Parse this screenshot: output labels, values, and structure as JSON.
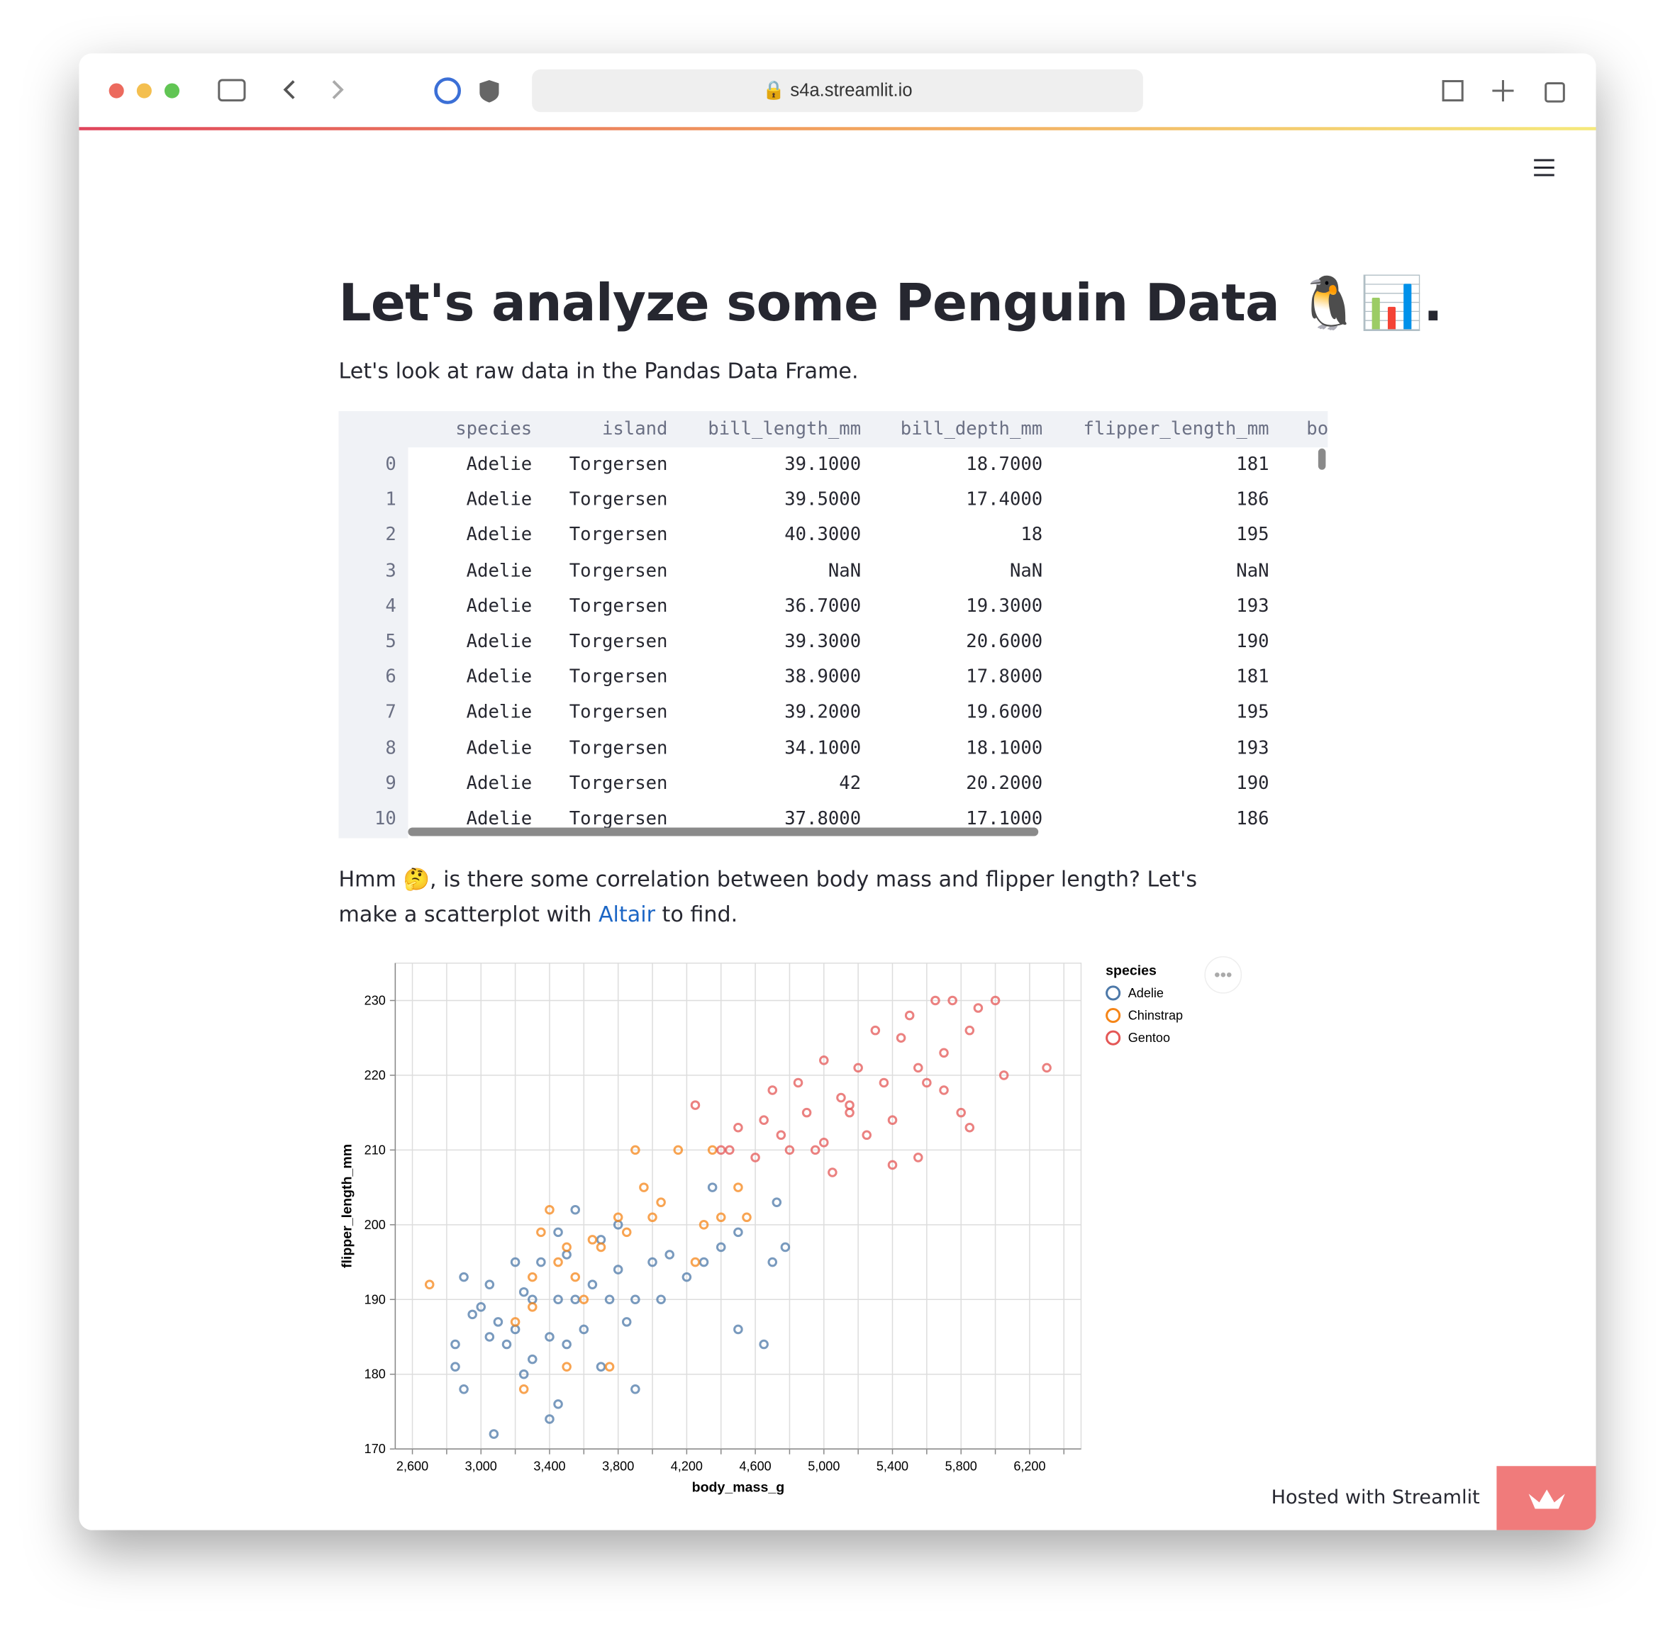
{
  "browser": {
    "url": "s4a.streamlit.io"
  },
  "page": {
    "title": "Let's analyze some Penguin Data 🐧📊.",
    "intro": "Let's look at raw data in the Pandas Data Frame.",
    "table": {
      "columns": [
        "species",
        "island",
        "bill_length_mm",
        "bill_depth_mm",
        "flipper_length_mm",
        "bo"
      ],
      "rows": [
        [
          "0",
          "Adelie",
          "Torgersen",
          "39.1000",
          "18.7000",
          "181"
        ],
        [
          "1",
          "Adelie",
          "Torgersen",
          "39.5000",
          "17.4000",
          "186"
        ],
        [
          "2",
          "Adelie",
          "Torgersen",
          "40.3000",
          "18",
          "195"
        ],
        [
          "3",
          "Adelie",
          "Torgersen",
          "NaN",
          "NaN",
          "NaN"
        ],
        [
          "4",
          "Adelie",
          "Torgersen",
          "36.7000",
          "19.3000",
          "193"
        ],
        [
          "5",
          "Adelie",
          "Torgersen",
          "39.3000",
          "20.6000",
          "190"
        ],
        [
          "6",
          "Adelie",
          "Torgersen",
          "38.9000",
          "17.8000",
          "181"
        ],
        [
          "7",
          "Adelie",
          "Torgersen",
          "39.2000",
          "19.6000",
          "195"
        ],
        [
          "8",
          "Adelie",
          "Torgersen",
          "34.1000",
          "18.1000",
          "193"
        ],
        [
          "9",
          "Adelie",
          "Torgersen",
          "42",
          "20.2000",
          "190"
        ],
        [
          "10",
          "Adelie",
          "Torgersen",
          "37.8000",
          "17.1000",
          "186"
        ]
      ]
    },
    "question": {
      "before": "Hmm 🤔, is there some correlation between body mass and flipper length? Let's make a scatterplot with ",
      "link": "Altair",
      "after": " to find."
    }
  },
  "chart_data": {
    "type": "scatter",
    "x_label": "body_mass_g",
    "y_label": "flipper_length_mm",
    "legend_title": "species",
    "legend": "right",
    "grid": true,
    "xlim": [
      2500,
      6500
    ],
    "xticks": [
      {
        "value": 2600,
        "label": "2,600"
      },
      {
        "value": 2800,
        "label": null
      },
      {
        "value": 3000,
        "label": "3,000"
      },
      {
        "value": 3200,
        "label": null
      },
      {
        "value": 3400,
        "label": "3,400"
      },
      {
        "value": 3600,
        "label": null
      },
      {
        "value": 3800,
        "label": "3,800"
      },
      {
        "value": 4000,
        "label": null
      },
      {
        "value": 4200,
        "label": "4,200"
      },
      {
        "value": 4400,
        "label": null
      },
      {
        "value": 4600,
        "label": "4,600"
      },
      {
        "value": 4800,
        "label": null
      },
      {
        "value": 5000,
        "label": "5,000"
      },
      {
        "value": 5200,
        "label": null
      },
      {
        "value": 5400,
        "label": "5,400"
      },
      {
        "value": 5600,
        "label": null
      },
      {
        "value": 5800,
        "label": "5,800"
      },
      {
        "value": 6000,
        "label": null
      },
      {
        "value": 6200,
        "label": "6,200"
      },
      {
        "value": 6400,
        "label": null
      }
    ],
    "ylim": [
      170,
      235
    ],
    "yticks": [
      170,
      180,
      190,
      200,
      210,
      220,
      230
    ],
    "series": [
      {
        "name": "Adelie",
        "color": "#4c78a8",
        "x": [
          2900,
          2850,
          2900,
          2950,
          3000,
          3050,
          3050,
          3100,
          3150,
          3200,
          3200,
          3250,
          3250,
          3300,
          3300,
          3350,
          3400,
          3400,
          3450,
          3450,
          3500,
          3500,
          3550,
          3550,
          3600,
          3650,
          3700,
          3700,
          3750,
          3800,
          3850,
          3900,
          3900,
          4000,
          4050,
          4100,
          4200,
          4300,
          4350,
          4400,
          4500,
          4500,
          4650,
          4700,
          4725,
          4775,
          3075,
          2850,
          3450,
          3800
        ],
        "values": [
          193,
          181,
          178,
          188,
          189,
          192,
          185,
          187,
          184,
          195,
          186,
          191,
          180,
          190,
          182,
          195,
          174,
          185,
          176,
          190,
          196,
          184,
          202,
          190,
          186,
          192,
          198,
          181,
          190,
          194,
          187,
          190,
          178,
          195,
          190,
          196,
          193,
          195,
          205,
          197,
          186,
          199,
          184,
          195,
          203,
          197,
          172,
          184,
          199,
          200
        ]
      },
      {
        "name": "Chinstrap",
        "color": "#f58518",
        "x": [
          2700,
          3200,
          3250,
          3300,
          3350,
          3400,
          3450,
          3500,
          3550,
          3600,
          3650,
          3700,
          3750,
          3800,
          3850,
          3900,
          3950,
          4000,
          4050,
          4150,
          4300,
          4350,
          4400,
          4500,
          4550,
          4250,
          3300,
          3500
        ],
        "values": [
          192,
          187,
          178,
          193,
          199,
          202,
          195,
          197,
          193,
          190,
          198,
          197,
          181,
          201,
          199,
          210,
          205,
          201,
          203,
          210,
          200,
          210,
          201,
          205,
          201,
          195,
          189,
          181
        ]
      },
      {
        "name": "Gentoo",
        "color": "#e45756",
        "x": [
          4250,
          4400,
          4500,
          4600,
          4650,
          4700,
          4750,
          4800,
          4850,
          4900,
          4950,
          5000,
          5050,
          5100,
          5150,
          5200,
          5250,
          5300,
          5350,
          5400,
          5450,
          5500,
          5550,
          5600,
          5650,
          5700,
          5750,
          5800,
          5850,
          5900,
          6000,
          6050,
          6300,
          5400,
          5550,
          5850,
          5000,
          4450,
          5150,
          5700
        ],
        "values": [
          216,
          210,
          213,
          209,
          214,
          218,
          212,
          210,
          219,
          215,
          210,
          222,
          207,
          217,
          215,
          221,
          212,
          226,
          219,
          214,
          225,
          228,
          221,
          219,
          230,
          223,
          230,
          215,
          226,
          229,
          230,
          220,
          221,
          208,
          209,
          213,
          211,
          210,
          216,
          218
        ]
      }
    ]
  },
  "footer": {
    "hosted": "Hosted with Streamlit"
  }
}
